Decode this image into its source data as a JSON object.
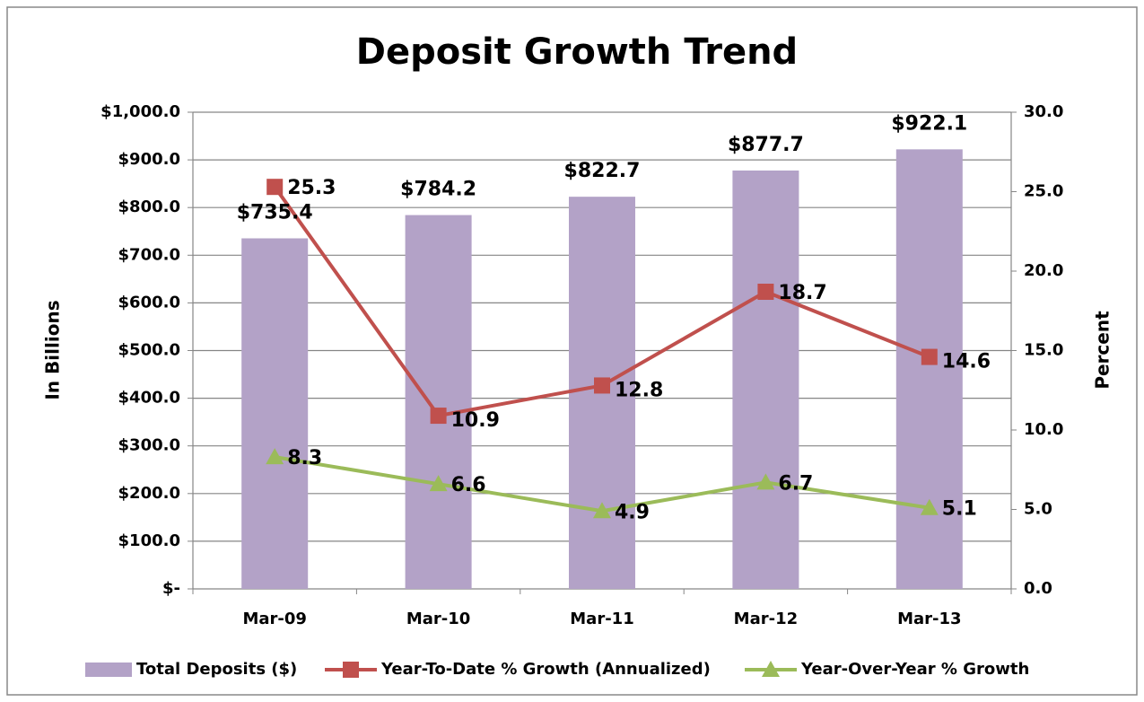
{
  "chart_data": {
    "type": "bar",
    "title": "Deposit Growth Trend",
    "y_label": "In Billions",
    "y2_label": "Percent",
    "categories": [
      "Mar-09",
      "Mar-10",
      "Mar-11",
      "Mar-12",
      "Mar-13"
    ],
    "series": [
      {
        "name": "Total Deposits ($)",
        "type": "bar",
        "axis": "y",
        "color": "#b3a2c7",
        "values": [
          735.4,
          784.2,
          822.7,
          877.7,
          922.1
        ],
        "value_labels": [
          "$735.4",
          "$784.2",
          "$822.7",
          "$877.7",
          "$922.1"
        ]
      },
      {
        "name": "Year-To-Date % Growth (Annualized)",
        "type": "line",
        "marker": "square",
        "axis": "y2",
        "color": "#c0504d",
        "values": [
          25.3,
          10.9,
          12.8,
          18.7,
          14.6
        ]
      },
      {
        "name": "Year-Over-Year % Growth",
        "type": "line",
        "marker": "triangle",
        "axis": "y2",
        "color": "#9bbb59",
        "values": [
          8.3,
          6.6,
          4.9,
          6.7,
          5.1
        ]
      }
    ],
    "ylim": [
      0,
      1000
    ],
    "yticks": [
      {
        "value": 0,
        "label": "$-"
      },
      {
        "value": 100,
        "label": "$100.0"
      },
      {
        "value": 200,
        "label": "$200.0"
      },
      {
        "value": 300,
        "label": "$300.0"
      },
      {
        "value": 400,
        "label": "$400.0"
      },
      {
        "value": 500,
        "label": "$500.0"
      },
      {
        "value": 600,
        "label": "$600.0"
      },
      {
        "value": 700,
        "label": "$700.0"
      },
      {
        "value": 800,
        "label": "$800.0"
      },
      {
        "value": 900,
        "label": "$900.0"
      },
      {
        "value": 1000,
        "label": "$1,000.0"
      }
    ],
    "y2lim": [
      0,
      30
    ],
    "y2ticks": [
      {
        "value": 0,
        "label": "0.0"
      },
      {
        "value": 5,
        "label": "5.0"
      },
      {
        "value": 10,
        "label": "10.0"
      },
      {
        "value": 15,
        "label": "15.0"
      },
      {
        "value": 20,
        "label": "20.0"
      },
      {
        "value": 25,
        "label": "25.0"
      },
      {
        "value": 30,
        "label": "30.0"
      }
    ],
    "grid": true,
    "legend": "bottom"
  }
}
